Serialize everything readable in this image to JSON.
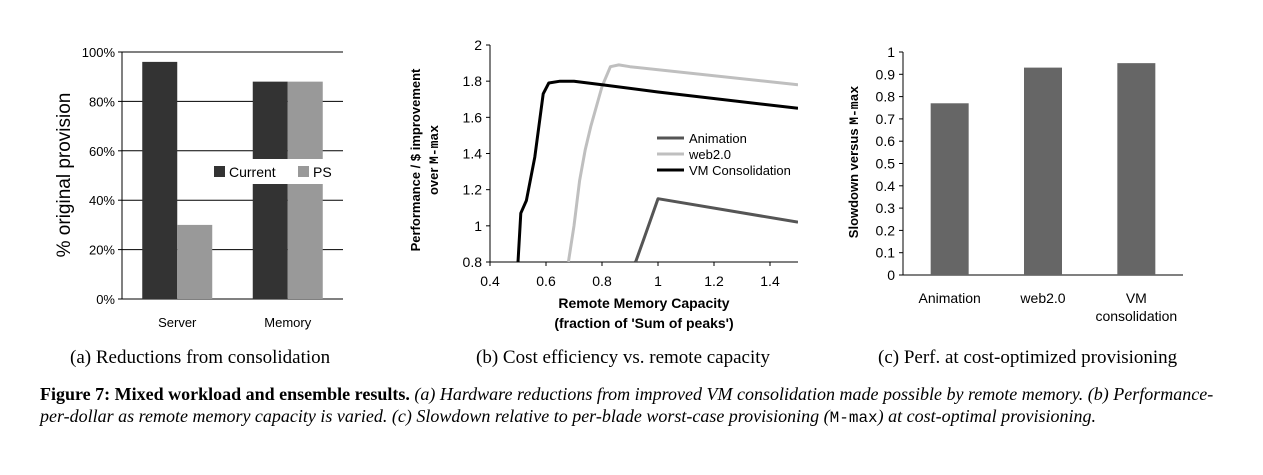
{
  "chart_data": [
    {
      "type": "bar",
      "panel": "a",
      "ylabel": "% original provision",
      "ylim": [
        0,
        100
      ],
      "yticks": [
        "0%",
        "20%",
        "40%",
        "60%",
        "80%",
        "100%"
      ],
      "categories": [
        "Server",
        "Memory"
      ],
      "series": [
        {
          "name": "Current",
          "color": "#333333",
          "values": [
            96,
            88
          ]
        },
        {
          "name": "PS",
          "color": "#999999",
          "values": [
            30,
            88
          ]
        }
      ],
      "legend": "center-right"
    },
    {
      "type": "line",
      "panel": "b",
      "xlabel_line1": "Remote Memory Capacity",
      "xlabel_line2": "(fraction of 'Sum of peaks')",
      "ylabel_line1": "Performance / $ improvement",
      "ylabel_line2_prefix": "over ",
      "ylabel_line2_code": "M-max",
      "xlim": [
        0.4,
        1.5
      ],
      "ylim": [
        0.8,
        2.0
      ],
      "xticks": [
        "0.4",
        "0.6",
        "0.8",
        "1",
        "1.2",
        "1.4"
      ],
      "yticks": [
        "0.8",
        "1",
        "1.2",
        "1.4",
        "1.6",
        "1.8",
        "2"
      ],
      "series": [
        {
          "name": "Animation",
          "color": "#555555",
          "width": 3,
          "x": [
            0.92,
            0.95,
            1.0,
            1.5
          ],
          "y": [
            0.8,
            0.93,
            1.15,
            1.02
          ]
        },
        {
          "name": "web2.0",
          "color": "#bfbfbf",
          "width": 3,
          "x": [
            0.68,
            0.7,
            0.72,
            0.74,
            0.76,
            0.78,
            0.8,
            0.83,
            0.86,
            0.9,
            1.5
          ],
          "y": [
            0.8,
            1.0,
            1.25,
            1.42,
            1.55,
            1.66,
            1.77,
            1.88,
            1.89,
            1.88,
            1.78
          ]
        },
        {
          "name": "VM Consolidation",
          "color": "#000000",
          "width": 3,
          "x": [
            0.5,
            0.51,
            0.53,
            0.56,
            0.59,
            0.61,
            0.65,
            0.7,
            0.8,
            1.0,
            1.5
          ],
          "y": [
            0.8,
            1.07,
            1.14,
            1.38,
            1.73,
            1.79,
            1.8,
            1.8,
            1.78,
            1.74,
            1.65
          ]
        }
      ],
      "legend": "center-right"
    },
    {
      "type": "bar",
      "panel": "c",
      "ylabel_prefix": "Slowdown versus ",
      "ylabel_code": "M-max",
      "ylim": [
        0,
        1
      ],
      "yticks": [
        "0",
        "0.1",
        "0.2",
        "0.3",
        "0.4",
        "0.5",
        "0.6",
        "0.7",
        "0.8",
        "0.9",
        "1"
      ],
      "categories": [
        "Animation",
        "web2.0",
        "VM|consolidation"
      ],
      "series": [
        {
          "name": "Slowdown",
          "color": "#666666",
          "values": [
            0.77,
            0.93,
            0.95
          ]
        }
      ]
    }
  ],
  "subcaptions": {
    "a": "(a)  Reductions from consolidation",
    "b": "(b) Cost efficiency vs. remote capacity",
    "c": "(c) Perf. at cost-optimized provisioning"
  },
  "caption": {
    "lead": "Figure 7: Mixed workload and ensemble results.",
    "body1": "(a) Hardware reductions from improved VM consolidation made possible by remote memory. (b) Performance-per-dollar as remote memory capacity is varied. (c) Slowdown relative to per-blade worst-case provisioning (",
    "code": "M-max",
    "body2": ") at cost-optimal provisioning."
  }
}
